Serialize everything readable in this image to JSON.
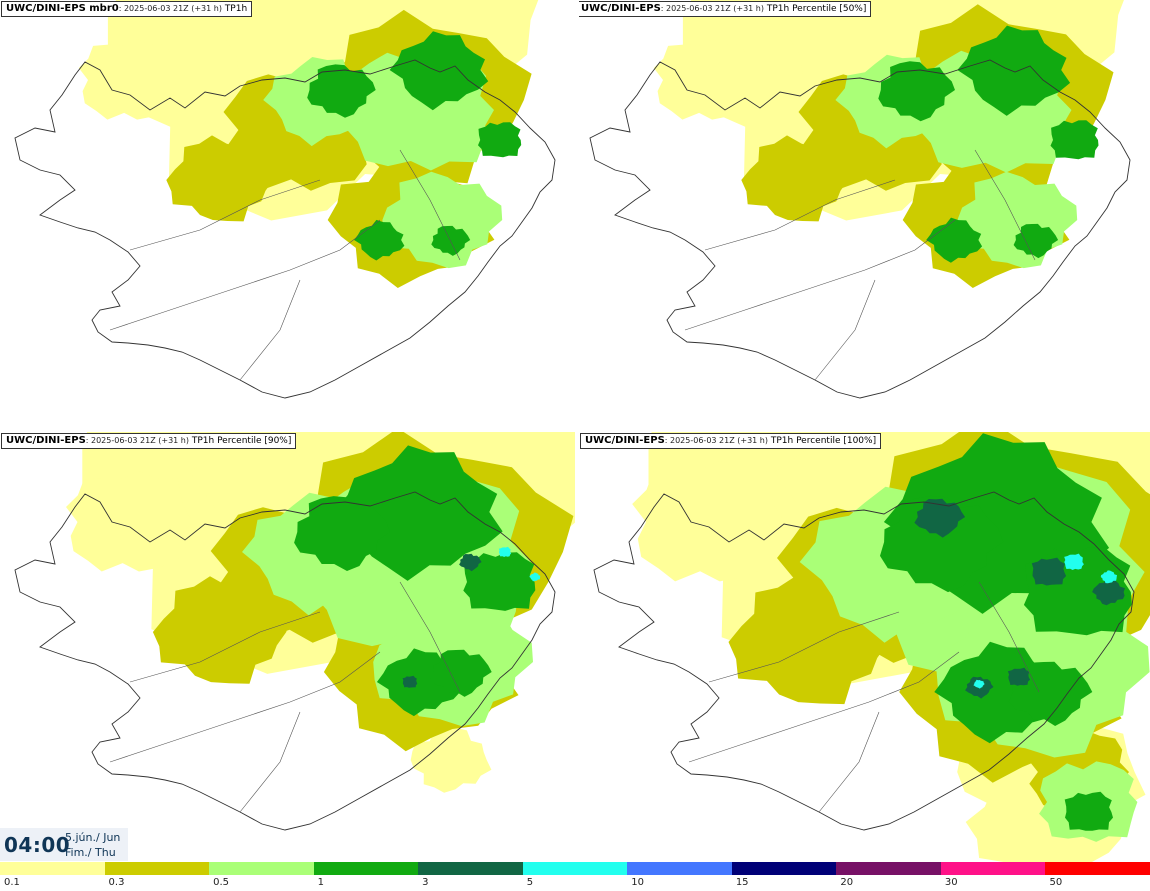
{
  "panels": [
    {
      "model": "UWC/DINI-EPS mbr0",
      "meta": ": 2025-06-03 21Z (+31 h)",
      "field": "TP1h"
    },
    {
      "model": "UWC/DINI-EPS",
      "meta": ": 2025-06-03 21Z (+31 h)",
      "field": "TP1h Percentile [50%]"
    },
    {
      "model": "UWC/DINI-EPS",
      "meta": ": 2025-06-03 21Z (+31 h)",
      "field": "TP1h Percentile [90%]"
    },
    {
      "model": "UWC/DINI-EPS",
      "meta": ": 2025-06-03 21Z (+31 h)",
      "field": "TP1h Percentile [100%]"
    }
  ],
  "valid_time": {
    "time": "04:00",
    "date_line": "5.jún./ Jun",
    "day_line": "Fim./ Thu"
  },
  "legend": {
    "colors": [
      "#ffff99",
      "#cccc00",
      "#aaff77",
      "#11aa11",
      "#116644",
      "#22ffee",
      "#4477ff",
      "#000077",
      "#771166",
      "#ff1188",
      "#ff0000"
    ],
    "labels": [
      "0.1",
      "0.3",
      "0.5",
      "1",
      "3",
      "5",
      "10",
      "15",
      "20",
      "30",
      "50"
    ]
  },
  "fill_colors": {
    "light": "#ffff99",
    "olive": "#cccc00",
    "lightgreen": "#aaff77",
    "green": "#11aa11",
    "dark": "#116644",
    "cyan": "#22ffee"
  }
}
